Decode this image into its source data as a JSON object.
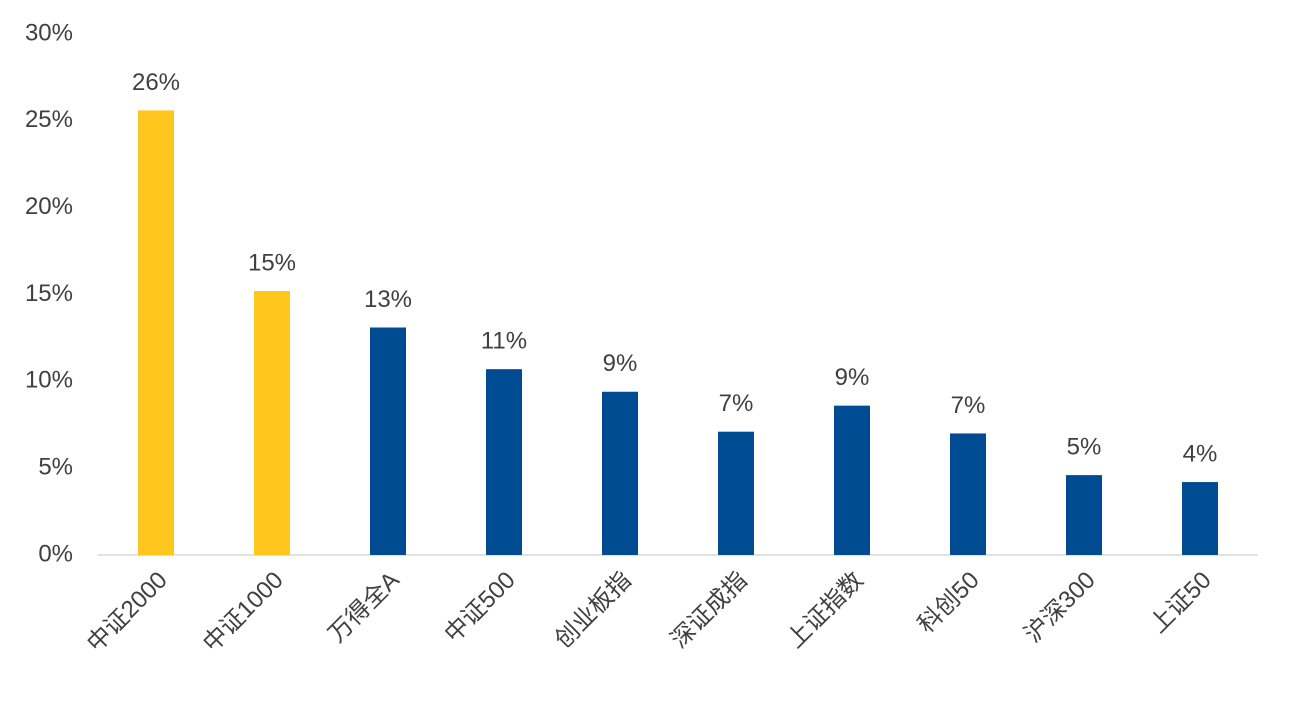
{
  "chart_data": {
    "type": "bar",
    "categories": [
      "中证2000",
      "中证1000",
      "万得全A",
      "中证500",
      "创业板指",
      "深证成指",
      "上证指数",
      "科创50",
      "沪深300",
      "上证50"
    ],
    "values": [
      25.6,
      15.2,
      13.1,
      10.7,
      9.4,
      7.1,
      8.6,
      7.0,
      4.6,
      4.2
    ],
    "value_labels": [
      "26%",
      "15%",
      "13%",
      "11%",
      "9%",
      "7%",
      "9%",
      "7%",
      "5%",
      "4%"
    ],
    "colors": [
      "#FFC61E",
      "#FFC61E",
      "#004C93",
      "#004C93",
      "#004C93",
      "#004C93",
      "#004C93",
      "#004C93",
      "#004C93",
      "#004C93"
    ],
    "ylim": [
      0,
      30
    ],
    "yticks": [
      {
        "value": 0,
        "label": "0%"
      },
      {
        "value": 5,
        "label": "5%"
      },
      {
        "value": 10,
        "label": "10%"
      },
      {
        "value": 15,
        "label": "15%"
      },
      {
        "value": 20,
        "label": "20%"
      },
      {
        "value": 25,
        "label": "25%"
      },
      {
        "value": 30,
        "label": "30%"
      }
    ],
    "grid": false
  }
}
